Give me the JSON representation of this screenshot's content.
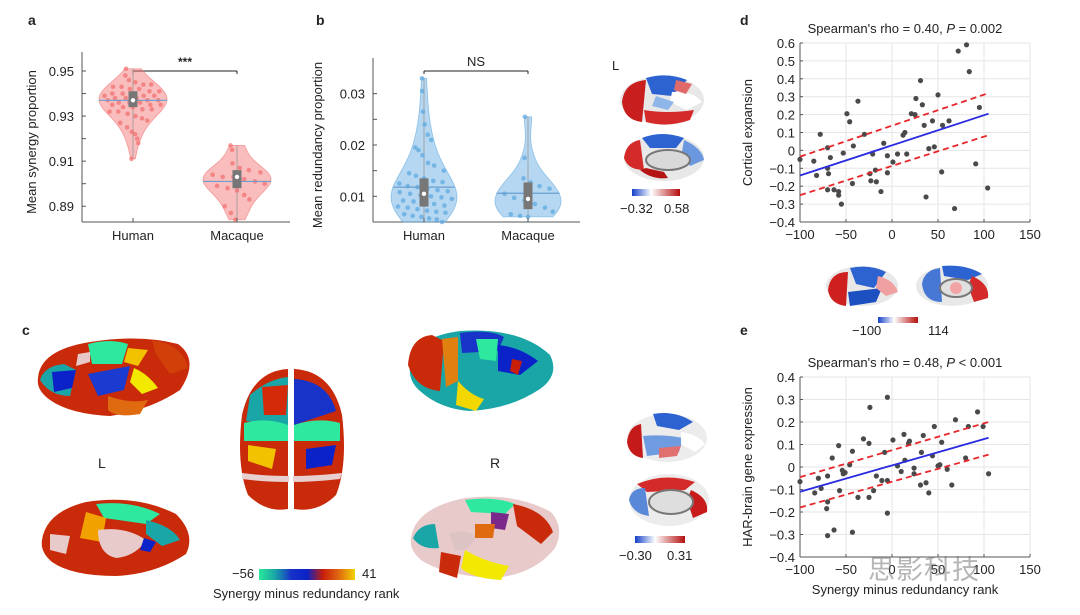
{
  "panels": {
    "a": {
      "label": "a"
    },
    "b": {
      "label": "b"
    },
    "c": {
      "label": "c",
      "left_hemi_label": "L",
      "right_hemi_label": "R",
      "colorbar": {
        "min_label": "−56",
        "max_label": "41",
        "title": "Synergy minus redundancy rank",
        "colors": [
          "#27e89a",
          "#1aa6a6",
          "#1733c8",
          "#0a22c8",
          "#c81e0a",
          "#e06a10",
          "#f2d200"
        ]
      }
    },
    "b_brain": {
      "hemi_label": "L",
      "colorbar": {
        "min_label": "−0.32",
        "max_label": "0.58"
      }
    },
    "c_brain": {
      "colorbar": {
        "min_label": "−0.30",
        "max_label": "0.31"
      }
    },
    "d_brain": {
      "colorbar": {
        "min_label": "−100",
        "max_label": "114"
      }
    },
    "d": {
      "label": "d"
    },
    "e": {
      "label": "e"
    }
  },
  "watermark": "思影科技",
  "chart_data": [
    {
      "id": "a",
      "type": "violin",
      "title": "",
      "xlabel": "",
      "ylabel": "Mean synergy proportion",
      "categories": [
        "Human",
        "Macaque"
      ],
      "yticks": [
        "0.89",
        "0.91",
        "0.93",
        "0.95"
      ],
      "ylim": [
        0.883,
        0.954
      ],
      "color": "#f26d6d",
      "significance": "***",
      "series": [
        {
          "name": "Human",
          "median": 0.937,
          "q1": 0.934,
          "q3": 0.941,
          "mean": 0.937,
          "min": 0.911,
          "max": 0.951,
          "points": [
            0.951,
            0.948,
            0.946,
            0.945,
            0.944,
            0.944,
            0.943,
            0.943,
            0.942,
            0.942,
            0.941,
            0.941,
            0.94,
            0.94,
            0.94,
            0.939,
            0.939,
            0.939,
            0.938,
            0.938,
            0.938,
            0.937,
            0.937,
            0.937,
            0.936,
            0.936,
            0.936,
            0.935,
            0.935,
            0.935,
            0.934,
            0.934,
            0.933,
            0.933,
            0.932,
            0.932,
            0.931,
            0.93,
            0.929,
            0.928,
            0.927,
            0.925,
            0.923,
            0.922,
            0.92,
            0.918,
            0.911
          ]
        },
        {
          "name": "Macaque",
          "median": 0.903,
          "q1": 0.898,
          "q3": 0.906,
          "mean": 0.901,
          "min": 0.884,
          "max": 0.917,
          "points": [
            0.917,
            0.915,
            0.909,
            0.907,
            0.906,
            0.905,
            0.904,
            0.903,
            0.903,
            0.902,
            0.901,
            0.9,
            0.899,
            0.898,
            0.897,
            0.895,
            0.893,
            0.89,
            0.887,
            0.884
          ]
        }
      ]
    },
    {
      "id": "b",
      "type": "violin",
      "title": "",
      "xlabel": "",
      "ylabel": "Mean redundancy proportion",
      "categories": [
        "Human",
        "Macaque"
      ],
      "yticks": [
        "0.01",
        "0.02",
        "0.03"
      ],
      "ylim": [
        0.005,
        0.035
      ],
      "color": "#5aa7e0",
      "significance": "NS",
      "series": [
        {
          "name": "Human",
          "median": 0.0105,
          "q1": 0.008,
          "q3": 0.0135,
          "mean": 0.0118,
          "min": 0.005,
          "max": 0.033,
          "points": [
            0.033,
            0.0305,
            0.0265,
            0.024,
            0.022,
            0.021,
            0.0195,
            0.019,
            0.018,
            0.0165,
            0.016,
            0.015,
            0.0145,
            0.014,
            0.0135,
            0.013,
            0.0128,
            0.0125,
            0.012,
            0.0118,
            0.0115,
            0.0112,
            0.011,
            0.0108,
            0.0105,
            0.0102,
            0.01,
            0.0098,
            0.0095,
            0.0092,
            0.009,
            0.0088,
            0.0085,
            0.0082,
            0.008,
            0.0078,
            0.0075,
            0.0072,
            0.007,
            0.0068,
            0.0065,
            0.0062,
            0.006,
            0.0057,
            0.0055,
            0.005
          ]
        },
        {
          "name": "Macaque",
          "median": 0.0095,
          "q1": 0.0075,
          "q3": 0.0127,
          "mean": 0.0106,
          "min": 0.006,
          "max": 0.0255,
          "points": [
            0.0255,
            0.0175,
            0.0135,
            0.0127,
            0.012,
            0.0115,
            0.0105,
            0.0097,
            0.0092,
            0.0085,
            0.0078,
            0.007,
            0.0065,
            0.0062,
            0.006
          ]
        }
      ]
    },
    {
      "id": "d",
      "type": "scatter",
      "title": "Spearman's rho = 0.40, P = 0.002",
      "xlabel": "",
      "ylabel": "Cortical expansion",
      "xlim": [
        -100,
        150
      ],
      "ylim": [
        -0.4,
        0.6
      ],
      "xticks": [
        -100,
        -50,
        0,
        50,
        100,
        150
      ],
      "yticks": [
        -0.4,
        -0.3,
        -0.2,
        -0.1,
        0,
        0.1,
        0.2,
        0.3,
        0.4,
        0.5,
        0.6
      ],
      "grid": true,
      "fit": {
        "x": [
          -100,
          105
        ],
        "y": [
          -0.14,
          0.205
        ]
      },
      "ci_upper": {
        "x": [
          -100,
          105
        ],
        "y": [
          -0.035,
          0.32
        ]
      },
      "ci_lower": {
        "x": [
          -100,
          105
        ],
        "y": [
          -0.25,
          0.085
        ]
      },
      "points": [
        [
          -100,
          -0.05
        ],
        [
          -85,
          -0.06
        ],
        [
          -82,
          -0.14
        ],
        [
          -78,
          0.09
        ],
        [
          -70,
          0.015
        ],
        [
          -70,
          -0.1
        ],
        [
          -69,
          -0.13
        ],
        [
          -70,
          -0.22
        ],
        [
          -67,
          -0.04
        ],
        [
          -63,
          -0.22
        ],
        [
          -58,
          -0.23
        ],
        [
          -58,
          -0.25
        ],
        [
          -55,
          -0.3
        ],
        [
          -53,
          -0.015
        ],
        [
          -49,
          0.205
        ],
        [
          -46,
          0.16
        ],
        [
          -43,
          -0.185
        ],
        [
          -42,
          0.025
        ],
        [
          -37,
          0.275
        ],
        [
          -30,
          0.09
        ],
        [
          -24,
          -0.13
        ],
        [
          -23,
          -0.17
        ],
        [
          -21,
          -0.02
        ],
        [
          -18,
          -0.11
        ],
        [
          -17,
          -0.175
        ],
        [
          -12,
          -0.23
        ],
        [
          -9,
          0.04
        ],
        [
          -5,
          -0.03
        ],
        [
          -5,
          -0.125
        ],
        [
          1,
          -0.065
        ],
        [
          6,
          -0.02
        ],
        [
          12,
          0.085
        ],
        [
          14,
          0.1
        ],
        [
          16,
          -0.02
        ],
        [
          21,
          0.205
        ],
        [
          25,
          0.2
        ],
        [
          26,
          0.29
        ],
        [
          31,
          0.39
        ],
        [
          33,
          0.255
        ],
        [
          35,
          0.14
        ],
        [
          37,
          -0.26
        ],
        [
          40,
          0.01
        ],
        [
          46,
          0.02
        ],
        [
          44,
          0.165
        ],
        [
          50,
          0.31
        ],
        [
          54,
          -0.12
        ],
        [
          55,
          0.14
        ],
        [
          62,
          0.165
        ],
        [
          68,
          -0.325
        ],
        [
          72,
          0.555
        ],
        [
          81,
          0.59
        ],
        [
          84,
          0.44
        ],
        [
          91,
          -0.075
        ],
        [
          95,
          0.24
        ],
        [
          104,
          -0.21
        ]
      ]
    },
    {
      "id": "e",
      "type": "scatter",
      "title": "Spearman's rho = 0.48, P < 0.001",
      "xlabel": "Synergy minus redundancy rank",
      "ylabel": "HAR-brain gene expression",
      "xlim": [
        -100,
        150
      ],
      "ylim": [
        -0.4,
        0.4
      ],
      "xticks": [
        -100,
        -50,
        0,
        50,
        100,
        150
      ],
      "xtick_labels": [
        "−100",
        "−50",
        "0",
        "50",
        "100",
        "150"
      ],
      "yticks": [
        -0.4,
        -0.3,
        -0.2,
        -0.1,
        0,
        0.1,
        0.2,
        0.3,
        0.4
      ],
      "grid": true,
      "fit": {
        "x": [
          -100,
          105
        ],
        "y": [
          -0.11,
          0.13
        ]
      },
      "ci_upper": {
        "x": [
          -100,
          105
        ],
        "y": [
          -0.045,
          0.2
        ]
      },
      "ci_lower": {
        "x": [
          -100,
          105
        ],
        "y": [
          -0.18,
          0.055
        ]
      },
      "points": [
        [
          -100,
          -0.065
        ],
        [
          -84,
          -0.115
        ],
        [
          -80,
          -0.05
        ],
        [
          -77,
          -0.095
        ],
        [
          -70,
          -0.04
        ],
        [
          -70,
          -0.155
        ],
        [
          -71,
          -0.185
        ],
        [
          -70,
          -0.305
        ],
        [
          -65,
          0.04
        ],
        [
          -63,
          -0.28
        ],
        [
          -58,
          0.095
        ],
        [
          -57,
          -0.105
        ],
        [
          -54,
          -0.015
        ],
        [
          -53,
          -0.03
        ],
        [
          -51,
          -0.025
        ],
        [
          -46,
          0.01
        ],
        [
          -43,
          0.07
        ],
        [
          -43,
          -0.29
        ],
        [
          -37,
          -0.135
        ],
        [
          -31,
          0.125
        ],
        [
          -25,
          0.105
        ],
        [
          -25,
          -0.135
        ],
        [
          -24,
          0.265
        ],
        [
          -20,
          -0.105
        ],
        [
          -17,
          -0.04
        ],
        [
          -11,
          -0.06
        ],
        [
          -8,
          0.065
        ],
        [
          -5,
          0.31
        ],
        [
          -5,
          -0.06
        ],
        [
          -5,
          -0.205
        ],
        [
          1,
          0.12
        ],
        [
          6,
          0.005
        ],
        [
          10,
          -0.02
        ],
        [
          13,
          0.145
        ],
        [
          14,
          0.03
        ],
        [
          18,
          0.105
        ],
        [
          19,
          0.115
        ],
        [
          24,
          -0.005
        ],
        [
          24,
          -0.03
        ],
        [
          31,
          -0.08
        ],
        [
          32,
          0.065
        ],
        [
          34,
          0.14
        ],
        [
          37,
          -0.07
        ],
        [
          40,
          -0.115
        ],
        [
          44,
          0.05
        ],
        [
          46,
          0.18
        ],
        [
          50,
          0.005
        ],
        [
          52,
          0.01
        ],
        [
          54,
          0.11
        ],
        [
          60,
          -0.01
        ],
        [
          65,
          -0.08
        ],
        [
          69,
          0.21
        ],
        [
          80,
          0.04
        ],
        [
          83,
          0.18
        ],
        [
          93,
          0.245
        ],
        [
          99,
          0.18
        ],
        [
          105,
          -0.03
        ]
      ]
    }
  ]
}
